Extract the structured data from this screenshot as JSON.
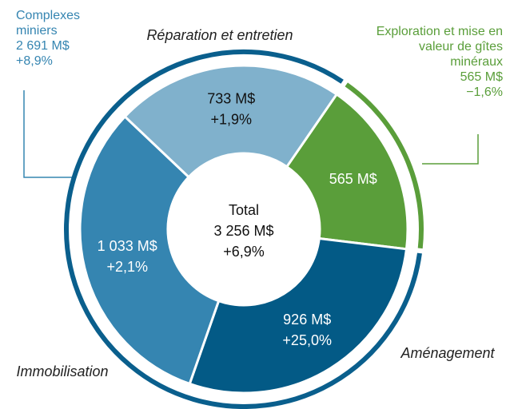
{
  "chart_data": {
    "type": "donut",
    "inner": {
      "categories": [
        null,
        "Aménagement",
        "Immobilisation",
        "Réparation et entretien"
      ],
      "values": [
        565,
        926,
        1033,
        733
      ],
      "value_labels": [
        "565 M$",
        "926 M$",
        "1 033 M$",
        "733 M$"
      ],
      "change_labels": [
        null,
        "+25,0%",
        "+2,1%",
        "+1,9%"
      ],
      "colors": [
        "#5a9e3a",
        "#035a86",
        "#3585b1",
        "#80b1cc"
      ]
    },
    "outer": {
      "categories": [
        "Complexes miniers",
        "Exploration et mise en valeur de gîtes minéraux"
      ],
      "values": [
        2691,
        565
      ],
      "value_labels": [
        "2 691 M$",
        "565 M$"
      ],
      "change_labels": [
        "+8,9%",
        "−1,6%"
      ],
      "colors": [
        "#0a5f8d",
        "#5a9e3a"
      ]
    },
    "total": {
      "label": "Total",
      "value": 3256,
      "value_label": "3 256 M$",
      "change_label": "+6,9%"
    }
  }
}
